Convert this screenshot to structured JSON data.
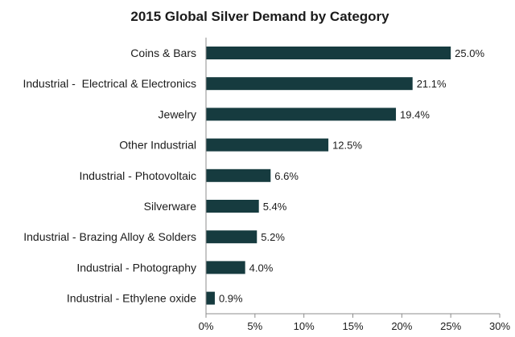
{
  "chart_data": {
    "type": "bar",
    "orientation": "horizontal",
    "title": "2015 Global Silver Demand by Category",
    "xlabel": "",
    "ylabel": "",
    "categories": [
      "Coins & Bars",
      "Industrial -  Electrical & Electronics",
      "Jewelry",
      "Other Industrial",
      "Industrial - Photovoltaic",
      "Silverware",
      "Industrial - Brazing Alloy & Solders",
      "Industrial - Photography",
      "Industrial - Ethylene oxide"
    ],
    "values": [
      25.0,
      21.1,
      19.4,
      12.5,
      6.6,
      5.4,
      5.2,
      4.0,
      0.9
    ],
    "value_labels": [
      "25.0%",
      "21.1%",
      "19.4%",
      "12.5%",
      "6.6%",
      "5.4%",
      "5.2%",
      "4.0%",
      "0.9%"
    ],
    "xlim": [
      0,
      30
    ],
    "x_ticks": [
      0,
      5,
      10,
      15,
      20,
      25,
      30
    ],
    "x_tick_labels": [
      "0%",
      "5%",
      "10%",
      "15%",
      "20%",
      "25%",
      "30%"
    ],
    "grid": false,
    "legend": "none",
    "bar_color": "#163b3f"
  }
}
